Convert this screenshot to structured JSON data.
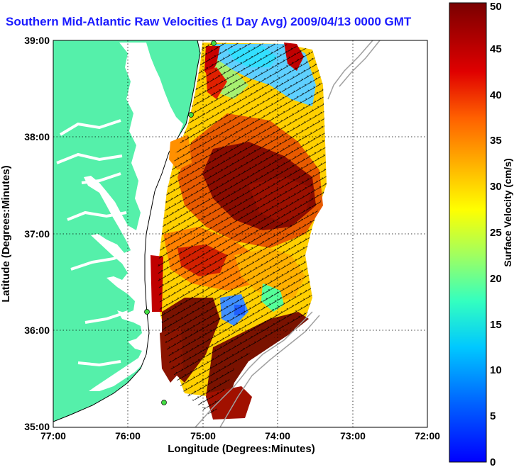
{
  "title": "Southern Mid-Atlantic Raw Velocities (1 Day Avg) 2009/04/13 0000 GMT",
  "xlabel": "Longitude (Degrees:Minutes)",
  "ylabel": "Latitude (Degrees:Minutes)",
  "x_ticks": [
    "77:00",
    "76:00",
    "75:00",
    "74:00",
    "73:00",
    "72:00"
  ],
  "y_ticks": [
    "39:00",
    "38:00",
    "37:00",
    "36:00",
    "35:00"
  ],
  "colorbar": {
    "label": "Surface Velocity (cm/s)",
    "ticks": [
      "0",
      "5",
      "10",
      "15",
      "20",
      "25",
      "30",
      "35",
      "40",
      "45",
      "50"
    ],
    "range": [
      0,
      50
    ]
  },
  "colors": {
    "land": "#55f0aa",
    "water": "#ffffff",
    "title": "#1a1aff",
    "coast": "#000000",
    "bathymetry": "#a0a0a0",
    "site_marker": "#44dd44"
  },
  "chart_data": {
    "type": "heatmap",
    "title": "Southern Mid-Atlantic Raw Velocities (1 Day Avg) 2009/04/13 0000 GMT",
    "xlabel": "Longitude (Degrees:Minutes)",
    "ylabel": "Latitude (Degrees:Minutes)",
    "xlim": [
      -77,
      -72
    ],
    "ylim": [
      35,
      39
    ],
    "grid": true,
    "colorbar_range_cm_s": [
      0,
      50
    ]
  }
}
